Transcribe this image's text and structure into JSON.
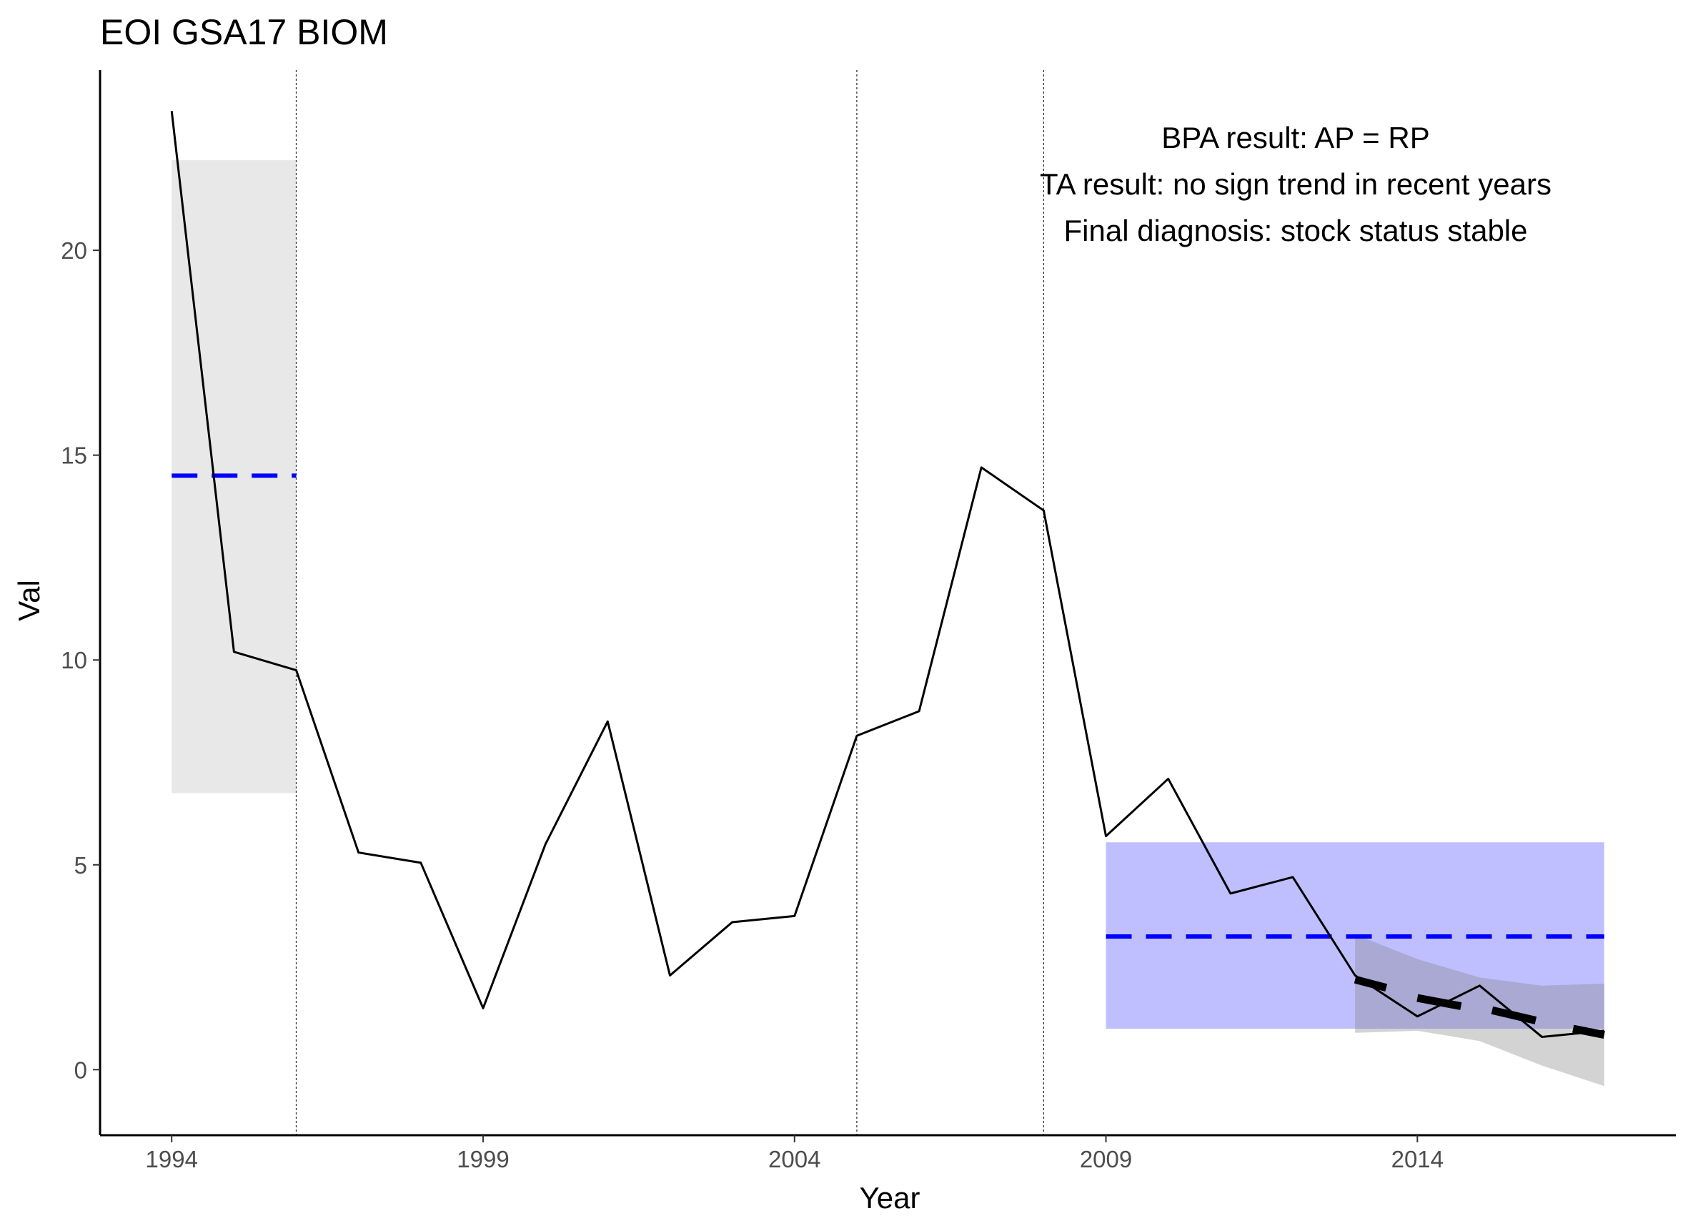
{
  "chart_data": {
    "type": "line",
    "title": "EOI GSA17 BIOM",
    "xlabel": "Year",
    "ylabel": "Val",
    "xlim": [
      1992.85,
      2018.15
    ],
    "ylim": [
      -1.6,
      24.4
    ],
    "x_ticks": [
      1994,
      1999,
      2004,
      2009,
      2014
    ],
    "y_ticks": [
      0,
      5,
      10,
      15,
      20
    ],
    "grid": false,
    "legend": "none",
    "series": [
      {
        "x": [
          1994,
          1995,
          1996,
          1997,
          1998,
          1999,
          2000,
          2001,
          2002,
          2003,
          2004,
          2005,
          2006,
          2007,
          2008,
          2009,
          2010,
          2011,
          2012,
          2013,
          2014,
          2015,
          2016,
          2017
        ],
        "values": [
          23.4,
          10.2,
          9.75,
          5.3,
          5.05,
          1.5,
          5.5,
          8.5,
          2.3,
          3.6,
          3.75,
          8.15,
          8.75,
          14.7,
          13.65,
          5.7,
          7.1,
          4.3,
          4.7,
          2.3,
          1.3,
          2.05,
          0.8,
          0.95
        ]
      }
    ],
    "vertical_lines": [
      1996,
      2005,
      2008
    ],
    "reference_period": {
      "x_range": [
        1994,
        1996
      ],
      "mean": 14.5,
      "band": [
        6.75,
        22.2
      ],
      "band_color": "#e8e8e8",
      "mean_color": "#0000ff"
    },
    "assessment_period": {
      "x_range": [
        2009,
        2017
      ],
      "mean": 3.25,
      "band": [
        1.0,
        5.55
      ],
      "band_color": "#bfbfff",
      "mean_color": "#0000ff"
    },
    "trend_band": {
      "x": [
        2013,
        2014,
        2015,
        2016,
        2017
      ],
      "upper": [
        3.3,
        2.7,
        2.25,
        2.05,
        2.1
      ],
      "lower": [
        0.9,
        0.95,
        0.7,
        0.1,
        -0.4
      ],
      "color": "#808080"
    },
    "trend_fit": {
      "segments": [
        [
          2013,
          2.2,
          2013.5,
          2.0
        ],
        [
          2014,
          1.75,
          2014.7,
          1.55
        ],
        [
          2015.2,
          1.45,
          2015.9,
          1.2
        ],
        [
          2016.5,
          1.0,
          2017,
          0.85
        ]
      ],
      "color": "#000000"
    },
    "annotations": [
      "BPA result: AP = RP",
      "TA result: no sign trend in recent years",
      "Final diagnosis: stock status stable"
    ]
  }
}
